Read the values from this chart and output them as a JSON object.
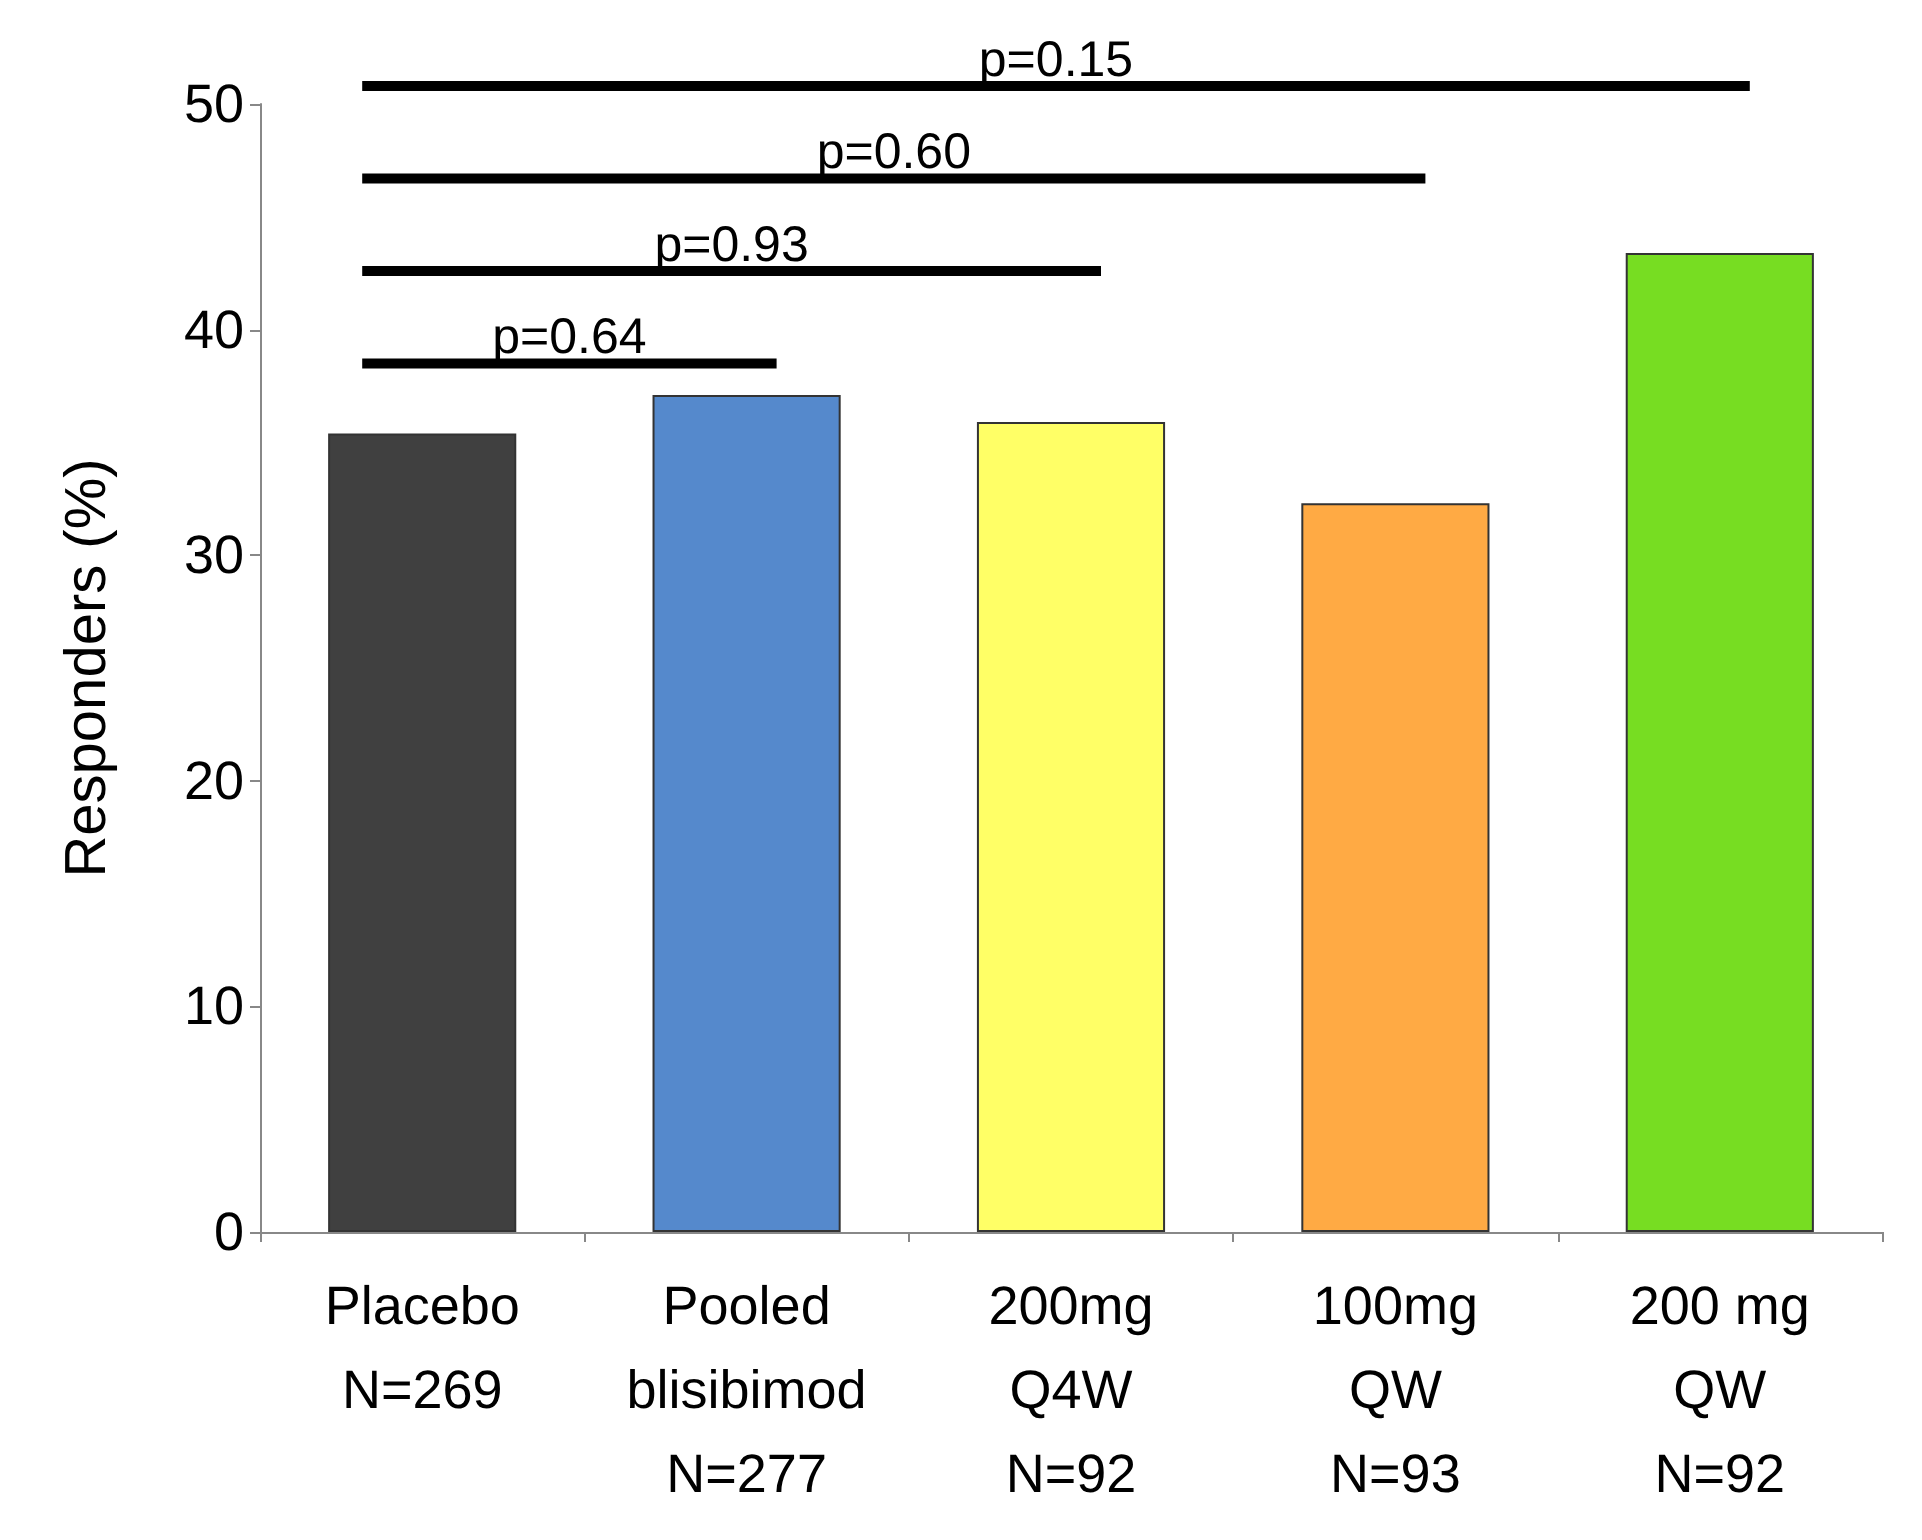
{
  "chart_data": {
    "type": "bar",
    "ylabel": "Responders (%)",
    "categories": [
      "Placebo\nN=269",
      "Pooled\nblisibimod\nN=277",
      "200mg\nQ4W\nN=92",
      "100mg\nQW\nN=93",
      "200 mg\nQW\nN=92"
    ],
    "values": [
      35.4,
      37.1,
      35.9,
      32.3,
      43.4
    ],
    "colors": [
      "#404040",
      "#5589cc",
      "#ffff66",
      "#ffaa44",
      "#77dd22"
    ],
    "ylim": [
      0,
      50
    ],
    "yticks": [
      0,
      10,
      20,
      30,
      40,
      50
    ],
    "grid": false,
    "annotations": [
      "p=0.64",
      "p=0.93",
      "p=0.60",
      "p=0.15"
    ]
  }
}
